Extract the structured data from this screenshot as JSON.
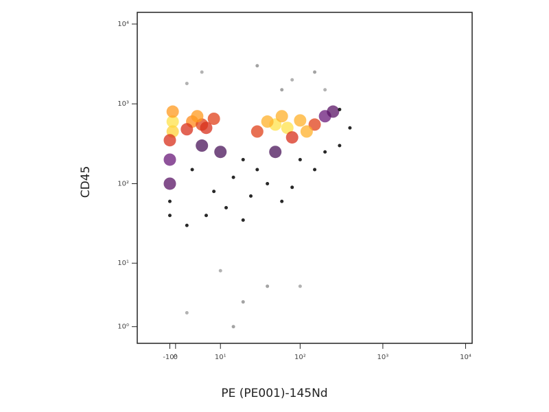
{
  "chart_data": {
    "type": "scatter",
    "x_label": "PE (PE001)-145Nd",
    "y_label": "CD45",
    "xscale": "arcsinh",
    "yscale": "arcsinh",
    "xlim": [
      -8,
      12000
    ],
    "ylim": [
      0,
      14000
    ],
    "xticks": [
      {
        "value": -1,
        "label": "-10⁰"
      },
      0,
      {
        "value": 10,
        "label": "10¹"
      },
      {
        "value": 100,
        "label": "10²"
      },
      {
        "value": 1000,
        "label": "10³"
      },
      {
        "value": 10000,
        "label": "10⁴"
      }
    ],
    "yticks": [
      {
        "value": 1,
        "label": "10⁰"
      },
      {
        "value": 10,
        "label": "10¹"
      },
      {
        "value": 100,
        "label": "10²"
      },
      {
        "value": 1000,
        "label": "10³"
      },
      {
        "value": 10000,
        "label": "10⁴"
      }
    ],
    "x": [
      -0.5,
      -0.5,
      -0.5,
      -1,
      -1,
      -1,
      -1,
      -1,
      3,
      5,
      8,
      4,
      6,
      2,
      50,
      70,
      40,
      100,
      30,
      150,
      200,
      80,
      60,
      120,
      250,
      300,
      5,
      10,
      20,
      15,
      3,
      8,
      30,
      50,
      100,
      150,
      200,
      40,
      25,
      12,
      6,
      80,
      300,
      400,
      60,
      2,
      20,
      5,
      30,
      80,
      150,
      2,
      60,
      200,
      10,
      40,
      100,
      20,
      2,
      15
    ],
    "y": [
      600,
      450,
      800,
      350,
      200,
      100,
      60,
      40,
      600,
      550,
      650,
      700,
      500,
      480,
      550,
      500,
      600,
      620,
      450,
      550,
      700,
      380,
      700,
      450,
      800,
      850,
      300,
      250,
      200,
      120,
      150,
      80,
      150,
      250,
      200,
      150,
      250,
      100,
      70,
      50,
      40,
      90,
      300,
      500,
      60,
      30,
      35,
      2500,
      3000,
      2000,
      2500,
      1800,
      1500,
      1500,
      8,
      5,
      5,
      3,
      2,
      1
    ],
    "colors": [
      "#ffe24a",
      "#ffd23a",
      "#ff9a1e",
      "#d8301c",
      "#6a1a7a",
      "#5a1466",
      "#111111",
      "#111111",
      "#ff8a1a",
      "#e0401a",
      "#e0401a",
      "#ff9a1e",
      "#d8301c",
      "#d8301c",
      "#ffe24a",
      "#ffe24a",
      "#ffb02a",
      "#ffb02a",
      "#e0401a",
      "#e0401a",
      "#6a1a7a",
      "#d8301c",
      "#ffb02a",
      "#ffb02a",
      "#5a1466",
      "#111111",
      "#4a145a",
      "#4a145a",
      "#111111",
      "#111111",
      "#111111",
      "#111111",
      "#111111",
      "#4a145a",
      "#111111",
      "#111111",
      "#111111",
      "#111111",
      "#111111",
      "#111111",
      "#111111",
      "#111111",
      "#111111",
      "#111111",
      "#111111",
      "#111111",
      "#111111",
      "#aaaaaa",
      "#999999",
      "#aaaaaa",
      "#999999",
      "#aaaaaa",
      "#999999",
      "#aaaaaa",
      "#aaaaaa",
      "#999999",
      "#aaaaaa",
      "#999999",
      "#aaaaaa",
      "#999999"
    ]
  }
}
